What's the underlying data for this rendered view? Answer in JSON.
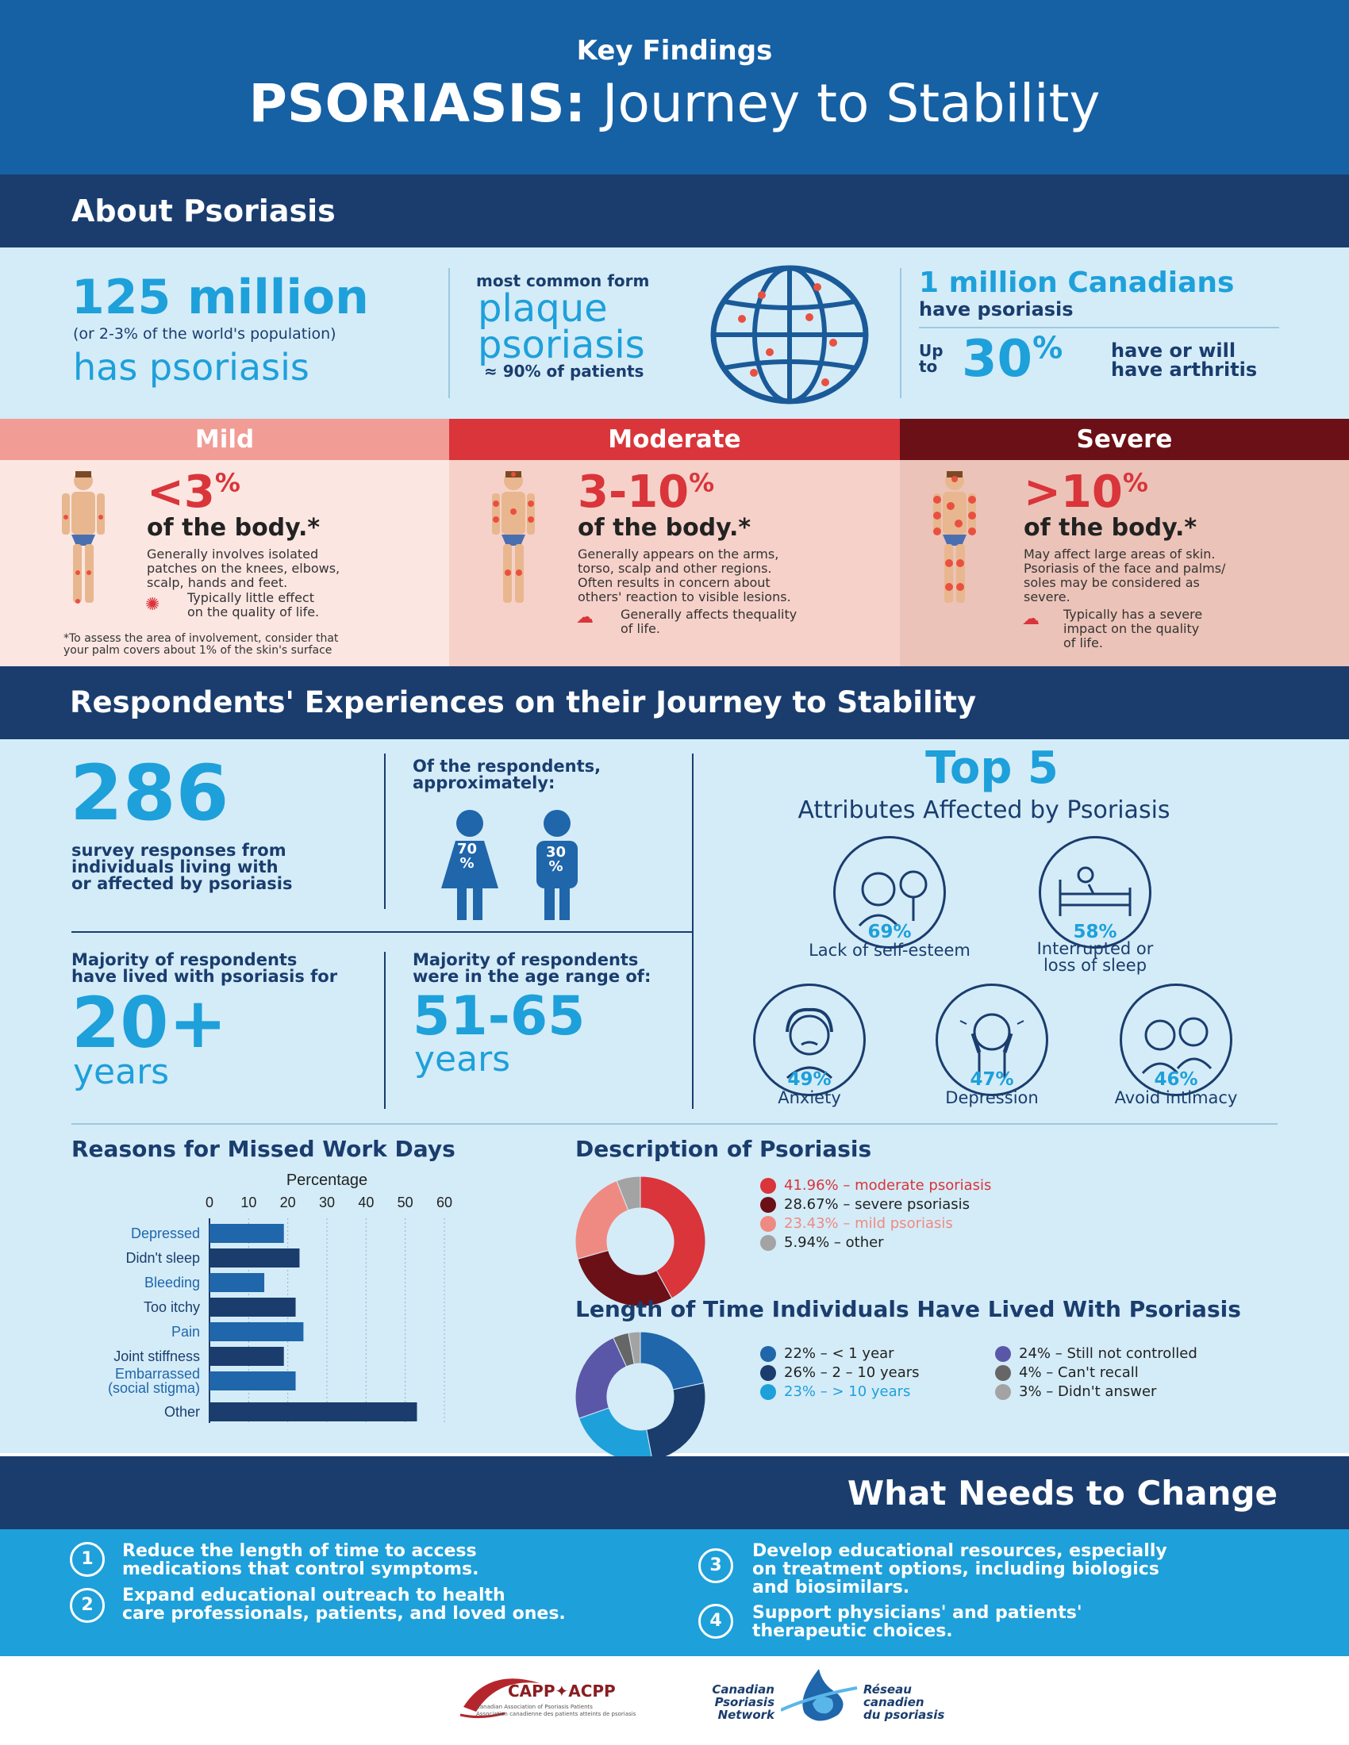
{
  "header": {
    "kicker": "Key Findings",
    "title_bold": "PSORIASIS:",
    "title_rest": " Journey to Stability"
  },
  "about": {
    "heading": "About Psoriasis",
    "stat1": {
      "big": "125 million",
      "sub": "(or 2-3% of the world's population)",
      "tail": "has psoriasis"
    },
    "stat2": {
      "pre": "most common form",
      "line1": "plaque",
      "line2": "psoriasis",
      "foot": "≈ 90% of patients"
    },
    "stat3": {
      "big": "1 million Canadians",
      "sub": "have psoriasis",
      "upto1": "Up",
      "upto2": "to",
      "pct": "30",
      "pct_sign": "%",
      "desc1": "have or will",
      "desc2": "have arthritis"
    }
  },
  "severity": {
    "mild": {
      "label": "Mild",
      "pct": "<3",
      "pct_sign": "%",
      "body": "of the body.*",
      "desc1": "Generally involves isolated",
      "desc2": "patches on the knees, elbows,",
      "desc3": "scalp, hands and feet.",
      "imp1": "Typically little effect",
      "imp2": "on the quality of life.",
      "note1": "*To assess the area of involvement, consider that",
      "note2": "your palm covers about 1% of the skin's surface"
    },
    "moderate": {
      "label": "Moderate",
      "pct": "3-10",
      "pct_sign": "%",
      "body": "of the body.*",
      "desc1": "Generally appears on the arms,",
      "desc2": "torso, scalp and other regions.",
      "desc3": "Often results in concern about",
      "desc4": "others' reaction to visible lesions.",
      "imp1": "Generally affects thequality",
      "imp2": "of life."
    },
    "severe": {
      "label": "Severe",
      "pct": ">10",
      "pct_sign": "%",
      "body": "of the body.*",
      "desc1": "May affect large areas of skin.",
      "desc2": "Psoriasis of the face and palms/",
      "desc3": "soles may be considered as",
      "desc4": "severe.",
      "imp1": "Typically has a severe",
      "imp2": "impact on the quality",
      "imp3": "of life."
    }
  },
  "experiences": {
    "heading": "Respondents' Experiences on their Journey to Stability",
    "responses": {
      "num": "286",
      "l1": "survey responses from",
      "l2": "individuals living with",
      "l3": "or affected by psoriasis"
    },
    "gender": {
      "l1": "Of the respondents,",
      "l2": "approximately:",
      "female_num": "70",
      "male_num": "30",
      "sign": "%"
    },
    "duration": {
      "l1": "Majority of respondents",
      "l2": "have lived with psoriasis for",
      "big": "20+",
      "unit": "years"
    },
    "age": {
      "l1": "Majority of respondents",
      "l2": "were in the age range of:",
      "big": "51-65",
      "unit": "years"
    },
    "top5": {
      "title": "Top 5",
      "subtitle": "Attributes Affected by Psoriasis",
      "items": [
        {
          "pct": "69%",
          "l1": "Lack of self-esteem",
          "l2": ""
        },
        {
          "pct": "58%",
          "l1": "Interrupted or",
          "l2": "loss of sleep"
        },
        {
          "pct": "49%",
          "l1": "Anxiety",
          "l2": ""
        },
        {
          "pct": "47%",
          "l1": "Depression",
          "l2": ""
        },
        {
          "pct": "46%",
          "l1": "Avoid intimacy",
          "l2": ""
        }
      ]
    }
  },
  "chart_data": [
    {
      "type": "bar",
      "title": "Reasons for Missed Work Days",
      "xlabel": "Percentage",
      "xlim": [
        0,
        60
      ],
      "ticks": [
        "0",
        "10",
        "20",
        "30",
        "40",
        "50",
        "60"
      ],
      "categories": [
        "Depressed",
        "Didn't sleep",
        "Bleeding",
        "Too itchy",
        "Pain",
        "Joint stiffness",
        "Embarrassed",
        "(social stigma)",
        "Other"
      ],
      "rows": [
        {
          "labels": [
            "Depressed"
          ],
          "value": 19
        },
        {
          "labels": [
            "Didn't sleep"
          ],
          "value": 23
        },
        {
          "labels": [
            "Bleeding"
          ],
          "value": 14
        },
        {
          "labels": [
            "Too itchy"
          ],
          "value": 22
        },
        {
          "labels": [
            "Pain"
          ],
          "value": 24
        },
        {
          "labels": [
            "Joint stiffness"
          ],
          "value": 19
        },
        {
          "labels": [
            "Embarrassed",
            "(social stigma)"
          ],
          "value": 22
        },
        {
          "labels": [
            "Other"
          ],
          "value": 53
        }
      ],
      "colors": [
        "#1f66ab",
        "#1a3d6e"
      ]
    },
    {
      "type": "pie",
      "title": "Description of Psoriasis",
      "slices": [
        {
          "label": "41.96% – moderate psoriasis",
          "value": 41.96,
          "color": "#d9353a"
        },
        {
          "label": "28.67% – severe psoriasis",
          "value": 28.67,
          "color": "#6b1016"
        },
        {
          "label": "23.43% – mild psoriasis",
          "value": 23.43,
          "color": "#ef8a82"
        },
        {
          "label": "5.94% – other",
          "value": 5.94,
          "color": "#a3a3a3"
        }
      ]
    },
    {
      "type": "pie",
      "title": "Length of Time Individuals Have Lived With Psoriasis",
      "slices": [
        {
          "label": "22% – < 1 year",
          "value": 22,
          "color": "#1f66ab"
        },
        {
          "label": "26% – 2 – 10 years",
          "value": 26,
          "color": "#1a3d6e"
        },
        {
          "label": "23% – > 10 years",
          "value": 23,
          "color": "#1ea0da"
        },
        {
          "label": "24% – Still not controlled",
          "value": 24,
          "color": "#5b57a8"
        },
        {
          "label": "4% – Can't recall",
          "value": 4,
          "color": "#666666"
        },
        {
          "label": "3% – Didn't answer",
          "value": 3,
          "color": "#a3a3a3"
        }
      ]
    }
  ],
  "change": {
    "heading": "What Needs to Change",
    "items": [
      {
        "n": "1",
        "l1": "Reduce the length of time to access",
        "l2": "medications that control symptoms.",
        "l3": ""
      },
      {
        "n": "2",
        "l1": "Expand educational outreach to health",
        "l2": "care professionals, patients, and loved ones.",
        "l3": ""
      },
      {
        "n": "3",
        "l1": "Develop educational resources, especially",
        "l2": "on treatment options, including biologics",
        "l3": "and biosimilars."
      },
      {
        "n": "4",
        "l1": "Support physicians' and patients'",
        "l2": "therapeutic choices.",
        "l3": ""
      }
    ]
  },
  "logos": {
    "capp": "CAPP✦ACPP",
    "capp_sub1": "Canadian Association of Psoriasis Patients",
    "capp_sub2": "Association canadienne des patients atteints de psoriasis",
    "cpn1": "Canadian",
    "cpn2": "Psoriasis",
    "cpn3": "Network",
    "rcp1": "Réseau",
    "rcp2": "canadien",
    "rcp3": "du psoriasis"
  },
  "colors": {
    "dark_navy": "#1a3d6e",
    "header_blue": "#1660a4",
    "light_blue": "#d4ecf8",
    "cyan": "#1ea0da",
    "mild": "#f19c95",
    "moderate": "#d9353a",
    "severe": "#6b1016"
  }
}
